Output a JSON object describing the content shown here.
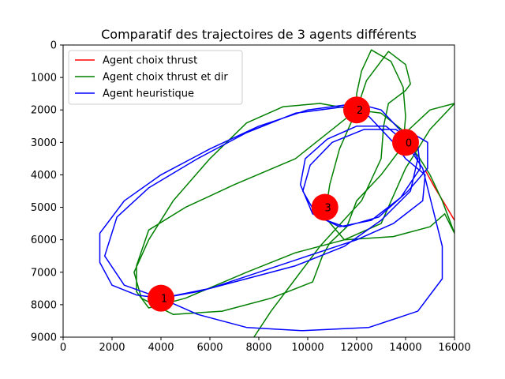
{
  "chart_data": {
    "type": "line",
    "title": "Comparatif des trajectoires de 3 agents différents",
    "xlabel": "",
    "ylabel": "",
    "xlim": [
      0,
      16000
    ],
    "ylim": [
      9000,
      0
    ],
    "y_inverted": true,
    "xticks": [
      0,
      2000,
      4000,
      6000,
      8000,
      10000,
      12000,
      14000,
      16000
    ],
    "yticks": [
      0,
      1000,
      2000,
      3000,
      4000,
      5000,
      6000,
      7000,
      8000,
      9000
    ],
    "grid": false,
    "legend_position": "top-left",
    "waypoints": [
      {
        "label": "0",
        "x": 14000,
        "y": 3000
      },
      {
        "label": "1",
        "x": 4000,
        "y": 7800
      },
      {
        "label": "2",
        "x": 12000,
        "y": 2000
      },
      {
        "label": "3",
        "x": 10700,
        "y": 5000
      }
    ],
    "waypoint_color": "#ff0000",
    "series": [
      {
        "name": "Agent choix thrust",
        "color": "#ff0000",
        "points": [
          [
            14800,
            3850
          ],
          [
            15200,
            4400
          ],
          [
            15600,
            4900
          ],
          [
            16000,
            5400
          ]
        ]
      },
      {
        "name": "Agent choix thrust et dir",
        "color": "#008000",
        "points": [
          [
            14000,
            3000
          ],
          [
            14500,
            3400
          ],
          [
            15000,
            4000
          ],
          [
            15500,
            4800
          ],
          [
            16000,
            5800
          ],
          [
            15600,
            5200
          ],
          [
            15000,
            5600
          ],
          [
            13500,
            5900
          ],
          [
            11500,
            6000
          ],
          [
            9500,
            6400
          ],
          [
            7500,
            7000
          ],
          [
            5000,
            7800
          ],
          [
            3500,
            8100
          ],
          [
            3000,
            7600
          ],
          [
            3000,
            6800
          ],
          [
            3500,
            5700
          ],
          [
            5000,
            5000
          ],
          [
            7000,
            4300
          ],
          [
            9500,
            3500
          ],
          [
            11000,
            2600
          ],
          [
            12000,
            2000
          ],
          [
            12000,
            1500
          ],
          [
            12200,
            800
          ],
          [
            12600,
            150
          ],
          [
            13400,
            500
          ],
          [
            13900,
            1300
          ],
          [
            14000,
            2200
          ],
          [
            13900,
            3100
          ],
          [
            13000,
            4000
          ],
          [
            12000,
            4800
          ],
          [
            11600,
            5600
          ],
          [
            10900,
            6100
          ],
          [
            10600,
            6500
          ],
          [
            10200,
            7300
          ],
          [
            8500,
            7800
          ],
          [
            6500,
            8200
          ],
          [
            4500,
            8300
          ],
          [
            3200,
            7800
          ],
          [
            2900,
            7000
          ],
          [
            3500,
            6000
          ],
          [
            4500,
            4800
          ],
          [
            6000,
            3500
          ],
          [
            7500,
            2400
          ],
          [
            9000,
            1900
          ],
          [
            10500,
            1800
          ],
          [
            12000,
            2000
          ],
          [
            13000,
            2100
          ],
          [
            14000,
            2700
          ],
          [
            15000,
            2000
          ],
          [
            16000,
            1800
          ],
          [
            15000,
            2600
          ],
          [
            14500,
            3200
          ],
          [
            14000,
            3800
          ],
          [
            13000,
            5500
          ],
          [
            11500,
            6000
          ],
          [
            10700,
            5300
          ],
          [
            10900,
            4300
          ],
          [
            11300,
            3200
          ],
          [
            12000,
            2000
          ],
          [
            12400,
            1100
          ],
          [
            13300,
            200
          ],
          [
            14000,
            600
          ],
          [
            14200,
            1200
          ],
          [
            14000,
            1400
          ],
          [
            13300,
            1800
          ],
          [
            13100,
            2500
          ],
          [
            13000,
            3500
          ],
          [
            12200,
            4800
          ],
          [
            10500,
            6200
          ],
          [
            9500,
            7200
          ],
          [
            8500,
            8200
          ],
          [
            7800,
            9000
          ]
        ]
      },
      {
        "name": "Agent heuristique",
        "color": "#0000ff",
        "points": [
          [
            4000,
            7800
          ],
          [
            3000,
            7700
          ],
          [
            2000,
            7400
          ],
          [
            1500,
            6700
          ],
          [
            1500,
            5800
          ],
          [
            2500,
            4800
          ],
          [
            4000,
            4000
          ],
          [
            6000,
            3200
          ],
          [
            8000,
            2500
          ],
          [
            10000,
            2000
          ],
          [
            12000,
            1800
          ],
          [
            13000,
            2000
          ],
          [
            14000,
            2800
          ],
          [
            14500,
            3500
          ],
          [
            14200,
            4500
          ],
          [
            13000,
            5400
          ],
          [
            11500,
            6200
          ],
          [
            9500,
            6800
          ],
          [
            7500,
            7200
          ],
          [
            5500,
            7600
          ],
          [
            4000,
            7800
          ],
          [
            2500,
            7400
          ],
          [
            1700,
            6500
          ],
          [
            2200,
            5300
          ],
          [
            3500,
            4400
          ],
          [
            5500,
            3500
          ],
          [
            7500,
            2700
          ],
          [
            9500,
            2100
          ],
          [
            11500,
            1900
          ],
          [
            12500,
            2200
          ],
          [
            13500,
            3000
          ],
          [
            14000,
            3500
          ],
          [
            14800,
            4000
          ],
          [
            14700,
            4800
          ],
          [
            13500,
            5500
          ],
          [
            12000,
            6000
          ],
          [
            10000,
            6500
          ],
          [
            8000,
            7000
          ],
          [
            6000,
            7500
          ],
          [
            4000,
            7800
          ],
          [
            5500,
            8300
          ],
          [
            7500,
            8700
          ],
          [
            9800,
            8800
          ],
          [
            12500,
            8700
          ],
          [
            14500,
            8200
          ],
          [
            15500,
            7200
          ],
          [
            15500,
            6200
          ],
          [
            15100,
            5000
          ],
          [
            14700,
            3800
          ],
          [
            14000,
            3000
          ],
          [
            13200,
            2500
          ],
          [
            12000,
            2500
          ],
          [
            10800,
            2900
          ],
          [
            9900,
            3500
          ],
          [
            9700,
            4300
          ],
          [
            10200,
            5200
          ],
          [
            11300,
            5600
          ],
          [
            12600,
            5400
          ],
          [
            13800,
            4700
          ],
          [
            14600,
            3800
          ],
          [
            14500,
            3100
          ],
          [
            13600,
            2600
          ],
          [
            12300,
            2600
          ],
          [
            11000,
            3000
          ],
          [
            10100,
            3700
          ],
          [
            9800,
            4500
          ],
          [
            10400,
            5300
          ],
          [
            11500,
            5600
          ],
          [
            12900,
            5300
          ],
          [
            14100,
            4500
          ],
          [
            14900,
            3800
          ],
          [
            14900,
            3000
          ],
          [
            14000,
            2600
          ]
        ]
      }
    ]
  }
}
